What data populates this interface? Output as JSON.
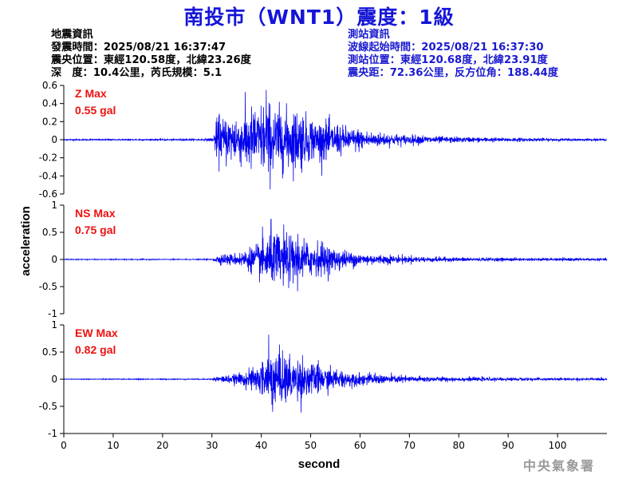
{
  "title": "南投市（WNT1）震度：1級",
  "event_info": {
    "heading": "地震資訊",
    "origin_time": "發震時間：2025/08/21 16:37:47",
    "epicenter": "震央位置：東經120.58度，北緯23.26度",
    "depth_magnitude": "深　度：10.4公里，芮氏規模：5.1"
  },
  "station_info": {
    "heading": "測站資訊",
    "wave_start": "波線起始時間：2025/08/21 16:37:30",
    "station_location": "測站位置：東經120.68度，北緯23.91度",
    "distance_azimuth": "震央距：72.36公里，反方位角：188.44度"
  },
  "footer": "中央氣象署",
  "colors": {
    "trace": "#0000ee",
    "title": "#1515d8",
    "station": "#1a1ad0",
    "max_label": "#ee1111"
  },
  "chart_data": {
    "type": "line",
    "xlabel": "second",
    "ylabel": "acceleration",
    "xlim": [
      0,
      110
    ],
    "xticks": [
      0,
      10,
      20,
      30,
      40,
      50,
      60,
      70,
      80,
      90,
      100
    ],
    "p_arrival_s": 30.5,
    "panels": [
      {
        "name": "Z",
        "max_title": "Z Max",
        "max_value": "0.55 gal",
        "ylim": [
          -0.6,
          0.6
        ],
        "yticks": [
          0.6,
          0.4,
          0.2,
          0,
          -0.2,
          -0.4,
          -0.6
        ],
        "ytick_labels": [
          "0.6",
          "0.4",
          "0.2",
          "0",
          "-0.2",
          "-0.4",
          "-0.6"
        ],
        "peak": 0.55,
        "envelope": [
          [
            0,
            0.01
          ],
          [
            28,
            0.012
          ],
          [
            30.2,
            0.03
          ],
          [
            31,
            0.3
          ],
          [
            33,
            0.35
          ],
          [
            36,
            0.4
          ],
          [
            38,
            0.5
          ],
          [
            41,
            0.55
          ],
          [
            44,
            0.5
          ],
          [
            47,
            0.45
          ],
          [
            52,
            0.3
          ],
          [
            57,
            0.2
          ],
          [
            62,
            0.12
          ],
          [
            70,
            0.07
          ],
          [
            80,
            0.04
          ],
          [
            90,
            0.03
          ],
          [
            100,
            0.02
          ],
          [
            110,
            0.015
          ]
        ]
      },
      {
        "name": "NS",
        "max_title": "NS Max",
        "max_value": "0.75 gal",
        "ylim": [
          -1,
          1
        ],
        "yticks": [
          1,
          0.5,
          0,
          -0.5,
          -1
        ],
        "ytick_labels": [
          "1",
          "0.5",
          "0",
          "-0.5",
          "-1"
        ],
        "peak": 0.75,
        "envelope": [
          [
            0,
            0.01
          ],
          [
            30,
            0.012
          ],
          [
            31,
            0.1
          ],
          [
            35,
            0.15
          ],
          [
            38,
            0.3
          ],
          [
            40,
            0.5
          ],
          [
            42,
            0.7
          ],
          [
            45,
            0.65
          ],
          [
            48,
            0.55
          ],
          [
            52,
            0.4
          ],
          [
            56,
            0.25
          ],
          [
            60,
            0.15
          ],
          [
            70,
            0.08
          ],
          [
            80,
            0.05
          ],
          [
            95,
            0.035
          ],
          [
            110,
            0.03
          ]
        ]
      },
      {
        "name": "EW",
        "max_title": "EW Max",
        "max_value": "0.82 gal",
        "ylim": [
          -1,
          1
        ],
        "yticks": [
          1,
          0.5,
          0,
          -0.5,
          -1
        ],
        "ytick_labels": [
          "1",
          "0.5",
          "0",
          "-0.5",
          "-1"
        ],
        "peak": 0.82,
        "envelope": [
          [
            0,
            0.01
          ],
          [
            30,
            0.012
          ],
          [
            31,
            0.08
          ],
          [
            35,
            0.12
          ],
          [
            38,
            0.25
          ],
          [
            40.5,
            0.45
          ],
          [
            41.5,
            0.8
          ],
          [
            44,
            0.65
          ],
          [
            47,
            0.55
          ],
          [
            51,
            0.4
          ],
          [
            55,
            0.25
          ],
          [
            60,
            0.15
          ],
          [
            70,
            0.08
          ],
          [
            80,
            0.05
          ],
          [
            95,
            0.035
          ],
          [
            110,
            0.03
          ]
        ]
      }
    ]
  }
}
